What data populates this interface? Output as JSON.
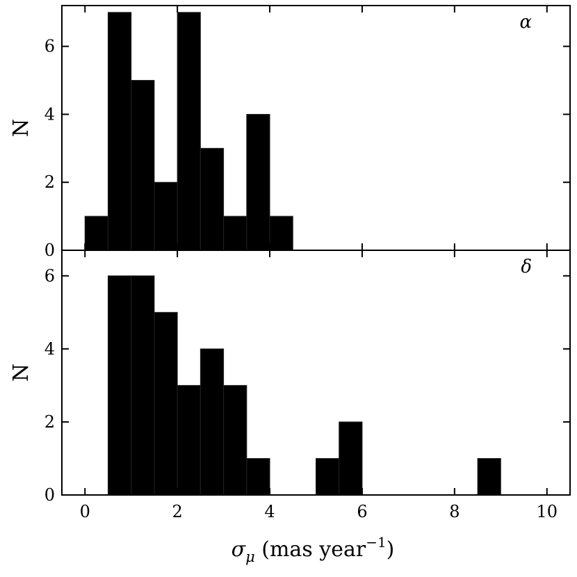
{
  "chart_data": [
    {
      "type": "bar",
      "panel_label": "α",
      "ylabel": "N",
      "xlim": [
        -0.5,
        10.5
      ],
      "ylim": [
        0,
        7.2
      ],
      "y_ticks": [
        0,
        2,
        4,
        6
      ],
      "bin_width": 0.5,
      "bins": [
        0.0,
        0.5,
        1.0,
        1.5,
        2.0,
        2.5,
        3.0,
        3.5,
        4.0
      ],
      "values": [
        1,
        7,
        5,
        2,
        7,
        3,
        1,
        4,
        1
      ]
    },
    {
      "type": "bar",
      "panel_label": "δ",
      "ylabel": "N",
      "xlim": [
        -0.5,
        10.5
      ],
      "ylim": [
        0,
        6.7
      ],
      "y_ticks": [
        0,
        2,
        4,
        6
      ],
      "bin_width": 0.5,
      "bins": [
        0.5,
        1.0,
        1.5,
        2.0,
        2.5,
        3.0,
        3.5,
        5.0,
        5.5,
        8.5
      ],
      "values": [
        6,
        6,
        5,
        3,
        4,
        3,
        1,
        1,
        2,
        1
      ]
    }
  ],
  "x_axis": {
    "ticks": [
      0,
      2,
      4,
      6,
      8,
      10
    ],
    "label_symbol": "σ",
    "label_subscript": "μ",
    "label_text": "(mas year",
    "label_superscript": "−1",
    "label_close": ")"
  },
  "colors": {
    "bar_fill": "#000000",
    "axis": "#000000",
    "background": "#ffffff"
  }
}
